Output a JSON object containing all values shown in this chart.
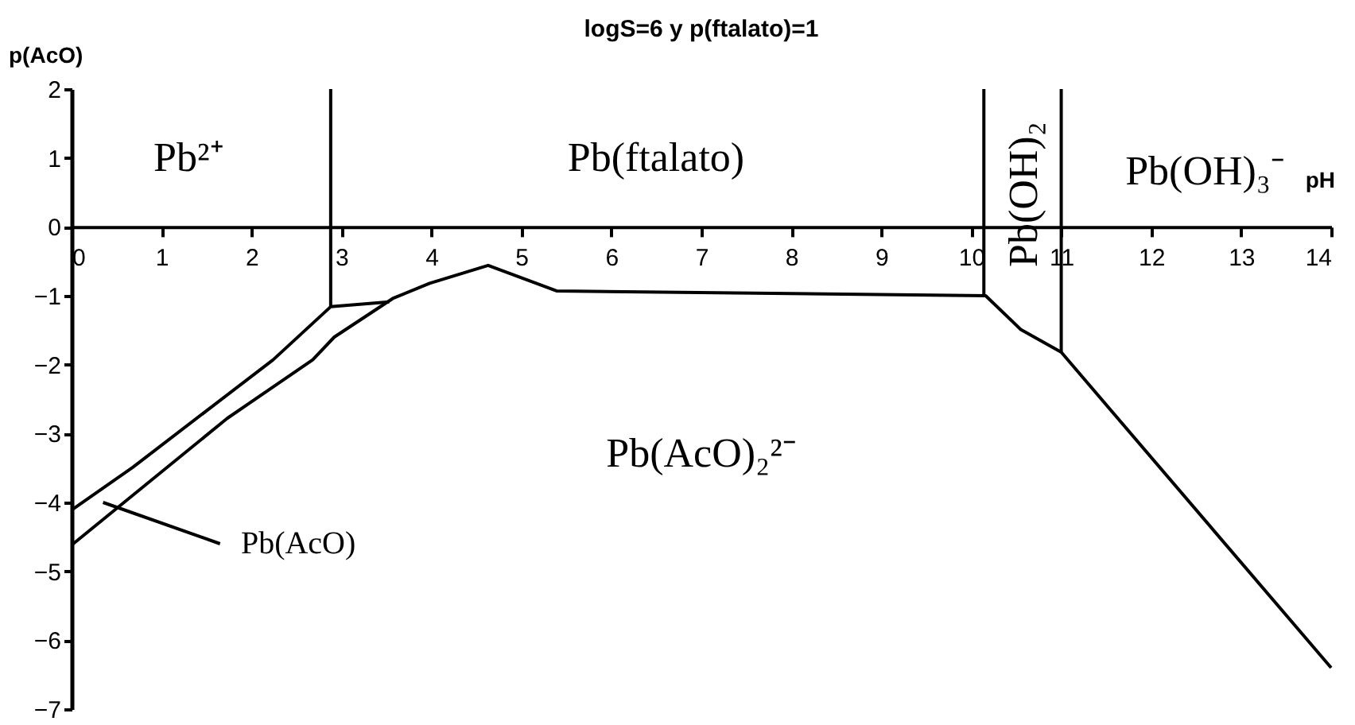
{
  "chart_data": {
    "type": "line",
    "title": "logS=6 y p(ftalato)=1",
    "xlabel": "pH",
    "ylabel": "p(AcO)",
    "xlim": [
      0,
      14
    ],
    "xticks": [
      0,
      1,
      2,
      3,
      4,
      5,
      6,
      7,
      8,
      9,
      10,
      11,
      12,
      13,
      14
    ],
    "ylim": [
      -7,
      2
    ],
    "yticks": [
      -7,
      -6,
      -5,
      -4,
      -3,
      -2,
      -1,
      0,
      1,
      2
    ],
    "grid": false,
    "series": [
      {
        "color": "#000000",
        "x": [
          0,
          0.68,
          2.24,
          2.88,
          3.53
        ],
        "values": [
          -4.11,
          -3.49,
          -1.93,
          -1.16,
          -1.09
        ]
      },
      {
        "color": "#000000",
        "x": [
          0,
          1.73,
          2.68,
          2.92,
          3.57,
          3.98,
          4.63,
          5.39,
          10.16,
          10.55,
          11,
          14
        ],
        "values": [
          -4.62,
          -2.78,
          -1.93,
          -1.6,
          -1.04,
          -0.82,
          -0.56,
          -0.93,
          -1.0,
          -1.49,
          -1.82,
          -6.4
        ]
      },
      {
        "color": "#000000",
        "x": [
          2.88,
          2.88
        ],
        "values": [
          -1.16,
          2
        ]
      },
      {
        "color": "#000000",
        "x": [
          10.14,
          10.14
        ],
        "values": [
          -1.0,
          2
        ]
      },
      {
        "color": "#000000",
        "x": [
          11,
          11
        ],
        "values": [
          -1.82,
          2
        ]
      },
      {
        "color": "#000000",
        "x": [
          0.35,
          1.65
        ],
        "values": [
          -4.0,
          -4.6
        ]
      }
    ],
    "annotations": [
      "Pb²⁺",
      "Pb(ftalato)",
      "Pb(OH)₂",
      "Pb(OH)₃⁻",
      "Pb(AcO)₂²⁻",
      "Pb(AcO)"
    ]
  }
}
